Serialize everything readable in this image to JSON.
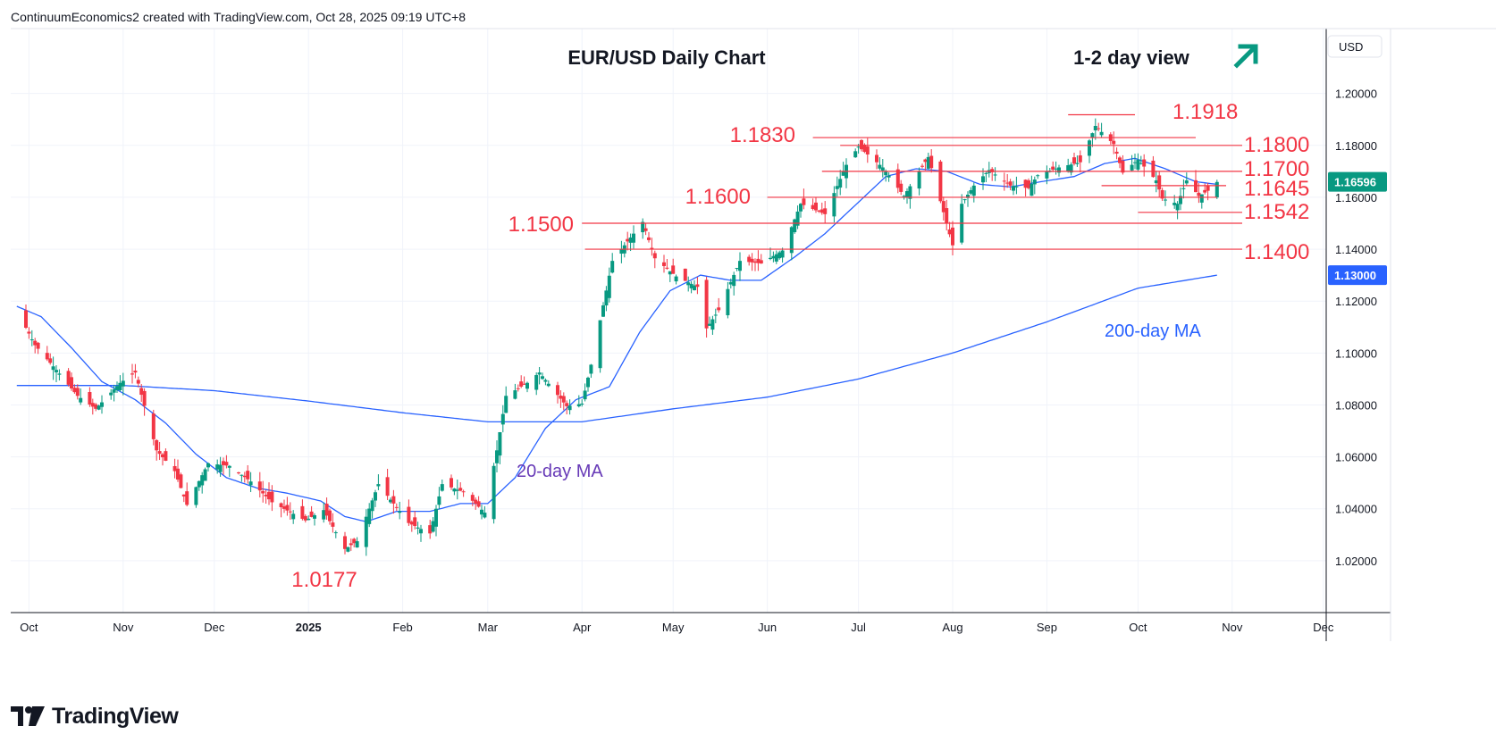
{
  "header": {
    "credit": "ContinuumEconomics2 created with TradingView.com, Oct 28, 2025 09:19 UTC+8"
  },
  "brand": {
    "name": "TradingView"
  },
  "colors": {
    "up": "#089981",
    "down": "#f23645",
    "level_line": "#f23645",
    "level_text": "#f23645",
    "ma": "#2962ff",
    "label_20ma": "#673ab7",
    "arrow": "#089981",
    "grid": "#f0f3fa",
    "axis_text": "#131722"
  },
  "chart_data": {
    "type": "candlestick",
    "title": "EUR/USD Daily Chart",
    "subtitle": "1-2 day view",
    "bias_icon": "arrow-up-right-icon",
    "currency": "USD",
    "y_range": [
      1.0,
      1.225
    ],
    "y_ticks": [
      "1.20000",
      "1.18000",
      "1.16000",
      "1.14000",
      "1.12000",
      "1.10000",
      "1.08000",
      "1.06000",
      "1.04000",
      "1.02000"
    ],
    "x_ticks": [
      "Oct",
      "Nov",
      "Dec",
      "2025",
      "Feb",
      "Mar",
      "Apr",
      "May",
      "Jun",
      "Jul",
      "Aug",
      "Sep",
      "Oct",
      "Nov",
      "Dec"
    ],
    "last_price": "1.16596",
    "ma200_end_price": "1.13000",
    "key_levels": [
      {
        "label": "1.1918",
        "value": 1.1918,
        "from": "2025-09-08",
        "to": "2025-09-30"
      },
      {
        "label": "1.1830",
        "value": 1.183,
        "from": "2025-06-16",
        "to": "2025-10-20"
      },
      {
        "label": "1.1800",
        "value": 1.18,
        "from": "2025-06-25",
        "to": "2025-11-10"
      },
      {
        "label": "1.1700",
        "value": 1.17,
        "from": "2025-06-19",
        "to": "2025-11-10"
      },
      {
        "label": "1.1645",
        "value": 1.1645,
        "from": "2025-09-19",
        "to": "2025-10-30"
      },
      {
        "label": "1.1600",
        "value": 1.16,
        "from": "2025-06-01",
        "to": "2025-10-27"
      },
      {
        "label": "1.1542",
        "value": 1.1542,
        "from": "2025-10-01",
        "to": "2025-11-10"
      },
      {
        "label": "1.1500",
        "value": 1.15,
        "from": "2025-04-01",
        "to": "2025-11-10"
      },
      {
        "label": "1.1400",
        "value": 1.14,
        "from": "2025-04-02",
        "to": "2025-11-10"
      },
      {
        "label": "1.0177",
        "value": 1.0177,
        "from": "",
        "to": ""
      }
    ],
    "annotations": [
      "20-day MA",
      "200-day MA"
    ],
    "price_path": [
      [
        "2024-09-27",
        1.1165
      ],
      [
        "2024-10-03",
        1.103
      ],
      [
        "2024-10-10",
        1.0935
      ],
      [
        "2024-10-17",
        1.0835
      ],
      [
        "2024-10-23",
        1.0785
      ],
      [
        "2024-10-31",
        1.0885
      ],
      [
        "2024-11-05",
        1.0925
      ],
      [
        "2024-11-12",
        1.0625
      ],
      [
        "2024-11-18",
        1.0545
      ],
      [
        "2024-11-22",
        1.0415
      ],
      [
        "2024-11-29",
        1.0575
      ],
      [
        "2024-12-06",
        1.0565
      ],
      [
        "2024-12-13",
        1.0505
      ],
      [
        "2024-12-20",
        1.0425
      ],
      [
        "2024-12-31",
        1.0355
      ],
      [
        "2025-01-06",
        1.0395
      ],
      [
        "2025-01-13",
        1.0245
      ],
      [
        "2025-01-17",
        1.0275
      ],
      [
        "2025-01-24",
        1.0495
      ],
      [
        "2025-02-03",
        1.0345
      ],
      [
        "2025-02-10",
        1.0305
      ],
      [
        "2025-02-14",
        1.0495
      ],
      [
        "2025-02-21",
        1.0465
      ],
      [
        "2025-02-28",
        1.0385
      ],
      [
        "2025-03-04",
        1.0625
      ],
      [
        "2025-03-07",
        1.0835
      ],
      [
        "2025-03-14",
        1.0885
      ],
      [
        "2025-03-18",
        1.0925
      ],
      [
        "2025-03-27",
        1.0795
      ],
      [
        "2025-04-01",
        1.0805
      ],
      [
        "2025-04-04",
        1.0955
      ],
      [
        "2025-04-11",
        1.1355
      ],
      [
        "2025-04-21",
        1.1505
      ],
      [
        "2025-04-25",
        1.1365
      ],
      [
        "2025-05-02",
        1.1295
      ],
      [
        "2025-05-09",
        1.1255
      ],
      [
        "2025-05-12",
        1.1095
      ],
      [
        "2025-05-16",
        1.1165
      ],
      [
        "2025-05-23",
        1.1355
      ],
      [
        "2025-05-30",
        1.1345
      ],
      [
        "2025-06-06",
        1.1395
      ],
      [
        "2025-06-12",
        1.1575
      ],
      [
        "2025-06-20",
        1.1535
      ],
      [
        "2025-06-27",
        1.1725
      ],
      [
        "2025-07-01",
        1.1795
      ],
      [
        "2025-07-09",
        1.1715
      ],
      [
        "2025-07-16",
        1.1605
      ],
      [
        "2025-07-24",
        1.1755
      ],
      [
        "2025-07-28",
        1.1585
      ],
      [
        "2025-08-01",
        1.1415
      ],
      [
        "2025-08-04",
        1.1575
      ],
      [
        "2025-08-08",
        1.1645
      ],
      [
        "2025-08-13",
        1.1705
      ],
      [
        "2025-08-20",
        1.1645
      ],
      [
        "2025-08-26",
        1.1635
      ],
      [
        "2025-08-29",
        1.1685
      ],
      [
        "2025-09-05",
        1.1715
      ],
      [
        "2025-09-12",
        1.1735
      ],
      [
        "2025-09-17",
        1.1875
      ],
      [
        "2025-09-23",
        1.1805
      ],
      [
        "2025-09-26",
        1.1695
      ],
      [
        "2025-10-01",
        1.1745
      ],
      [
        "2025-10-07",
        1.1665
      ],
      [
        "2025-10-09",
        1.1595
      ],
      [
        "2025-10-14",
        1.1575
      ],
      [
        "2025-10-17",
        1.1665
      ],
      [
        "2025-10-21",
        1.1605
      ],
      [
        "2025-10-24",
        1.1625
      ],
      [
        "2025-10-27",
        1.1659
      ]
    ],
    "ma20": [
      [
        "2024-09-27",
        1.118
      ],
      [
        "2024-10-05",
        1.114
      ],
      [
        "2024-10-15",
        1.102
      ],
      [
        "2024-10-25",
        1.089
      ],
      [
        "2024-11-05",
        1.082
      ],
      [
        "2024-11-15",
        1.073
      ],
      [
        "2024-11-25",
        1.061
      ],
      [
        "2024-12-05",
        1.052
      ],
      [
        "2024-12-15",
        1.048
      ],
      [
        "2024-12-25",
        1.046
      ],
      [
        "2025-01-05",
        1.043
      ],
      [
        "2025-01-13",
        1.037
      ],
      [
        "2025-01-20",
        1.035
      ],
      [
        "2025-01-30",
        1.039
      ],
      [
        "2025-02-10",
        1.039
      ],
      [
        "2025-02-20",
        1.042
      ],
      [
        "2025-03-01",
        1.042
      ],
      [
        "2025-03-10",
        1.052
      ],
      [
        "2025-03-20",
        1.071
      ],
      [
        "2025-03-30",
        1.082
      ],
      [
        "2025-04-10",
        1.087
      ],
      [
        "2025-04-20",
        1.108
      ],
      [
        "2025-04-30",
        1.124
      ],
      [
        "2025-05-10",
        1.13
      ],
      [
        "2025-05-20",
        1.128
      ],
      [
        "2025-05-30",
        1.128
      ],
      [
        "2025-06-10",
        1.137
      ],
      [
        "2025-06-20",
        1.146
      ],
      [
        "2025-06-30",
        1.157
      ],
      [
        "2025-07-10",
        1.168
      ],
      [
        "2025-07-20",
        1.171
      ],
      [
        "2025-07-30",
        1.17
      ],
      [
        "2025-08-10",
        1.165
      ],
      [
        "2025-08-20",
        1.164
      ],
      [
        "2025-08-30",
        1.166
      ],
      [
        "2025-09-10",
        1.168
      ],
      [
        "2025-09-20",
        1.173
      ],
      [
        "2025-09-30",
        1.175
      ],
      [
        "2025-10-10",
        1.171
      ],
      [
        "2025-10-20",
        1.166
      ],
      [
        "2025-10-27",
        1.165
      ]
    ],
    "ma200": [
      [
        "2024-09-27",
        1.0875
      ],
      [
        "2024-11-01",
        1.0875
      ],
      [
        "2024-12-01",
        1.0855
      ],
      [
        "2025-01-01",
        1.0815
      ],
      [
        "2025-02-01",
        1.077
      ],
      [
        "2025-03-01",
        1.0735
      ],
      [
        "2025-04-01",
        1.0735
      ],
      [
        "2025-05-01",
        1.0785
      ],
      [
        "2025-06-01",
        1.083
      ],
      [
        "2025-07-01",
        1.09
      ],
      [
        "2025-08-01",
        1.1
      ],
      [
        "2025-09-01",
        1.112
      ],
      [
        "2025-10-01",
        1.125
      ],
      [
        "2025-10-27",
        1.13
      ]
    ]
  }
}
